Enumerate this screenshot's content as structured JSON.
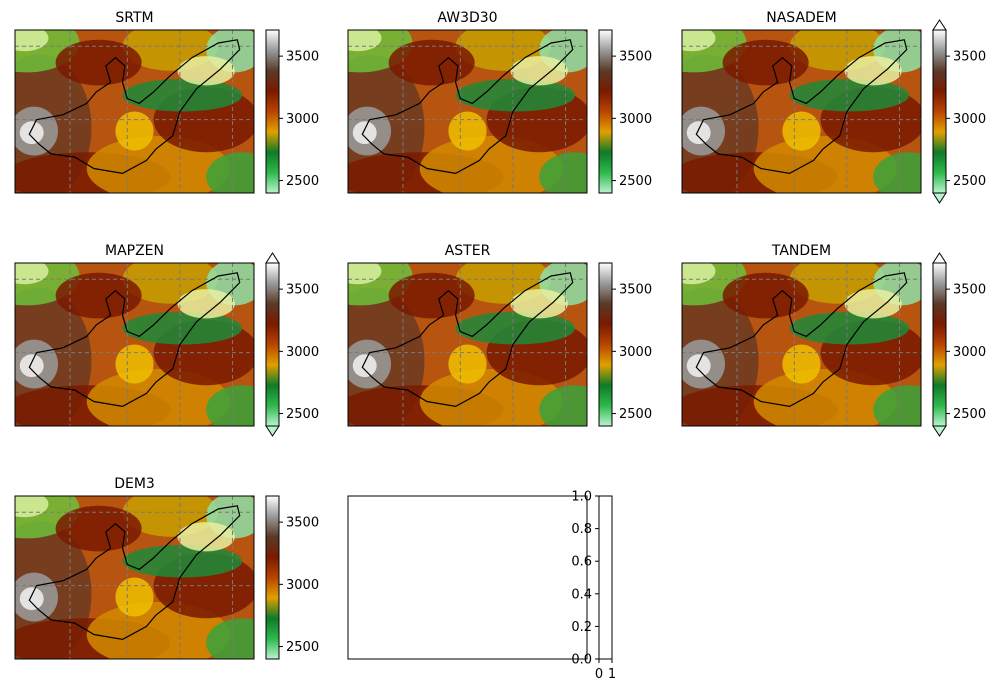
{
  "figure": {
    "colormap_stops": [
      "#b8f5d0",
      "#2fb84a",
      "#0f7a2a",
      "#e0a000",
      "#b84400",
      "#7a1a00",
      "#5a3a28",
      "#9a9a9a",
      "#ffffff"
    ],
    "outline_color": "#000000",
    "grid_color": "#7a7a7a",
    "grid": "dashed"
  },
  "chart_data": [
    {
      "type": "heatmap",
      "title": "SRTM",
      "colorbar": {
        "ticks": [
          "2500",
          "3000",
          "3500"
        ],
        "tick_values": [
          2500,
          3000,
          3500
        ],
        "range": [
          2400,
          3710
        ],
        "extend": "neither"
      }
    },
    {
      "type": "heatmap",
      "title": "AW3D30",
      "colorbar": {
        "ticks": [
          "2500",
          "3000",
          "3500"
        ],
        "tick_values": [
          2500,
          3000,
          3500
        ],
        "range": [
          2400,
          3710
        ],
        "extend": "neither"
      }
    },
    {
      "type": "heatmap",
      "title": "NASADEM",
      "colorbar": {
        "ticks": [
          "2500",
          "3000",
          "3500"
        ],
        "tick_values": [
          2500,
          3000,
          3500
        ],
        "range": [
          2400,
          3710
        ],
        "extend": "both"
      }
    },
    {
      "type": "heatmap",
      "title": "MAPZEN",
      "colorbar": {
        "ticks": [
          "2500",
          "3000",
          "3500"
        ],
        "tick_values": [
          2500,
          3000,
          3500
        ],
        "range": [
          2400,
          3710
        ],
        "extend": "both"
      }
    },
    {
      "type": "heatmap",
      "title": "ASTER",
      "colorbar": {
        "ticks": [
          "2500",
          "3000",
          "3500"
        ],
        "tick_values": [
          2500,
          3000,
          3500
        ],
        "range": [
          2400,
          3710
        ],
        "extend": "neither"
      }
    },
    {
      "type": "heatmap",
      "title": "TANDEM",
      "colorbar": {
        "ticks": [
          "2500",
          "3000",
          "3500"
        ],
        "tick_values": [
          2500,
          3000,
          3500
        ],
        "range": [
          2400,
          3710
        ],
        "extend": "both"
      }
    },
    {
      "type": "heatmap",
      "title": "DEM3",
      "colorbar": {
        "ticks": [
          "2500",
          "3000",
          "3500"
        ],
        "tick_values": [
          2500,
          3000,
          3500
        ],
        "range": [
          2400,
          3710
        ],
        "extend": "neither"
      }
    },
    {
      "type": "empty",
      "title": "",
      "colorbar": {
        "ticks": [
          "0.0",
          "0.2",
          "0.4",
          "0.6",
          "0.8",
          "1.0"
        ],
        "tick_values": [
          0,
          0.2,
          0.4,
          0.6,
          0.8,
          1.0
        ],
        "range": [
          0,
          1
        ],
        "xticks": [
          "0",
          "1"
        ]
      }
    }
  ]
}
